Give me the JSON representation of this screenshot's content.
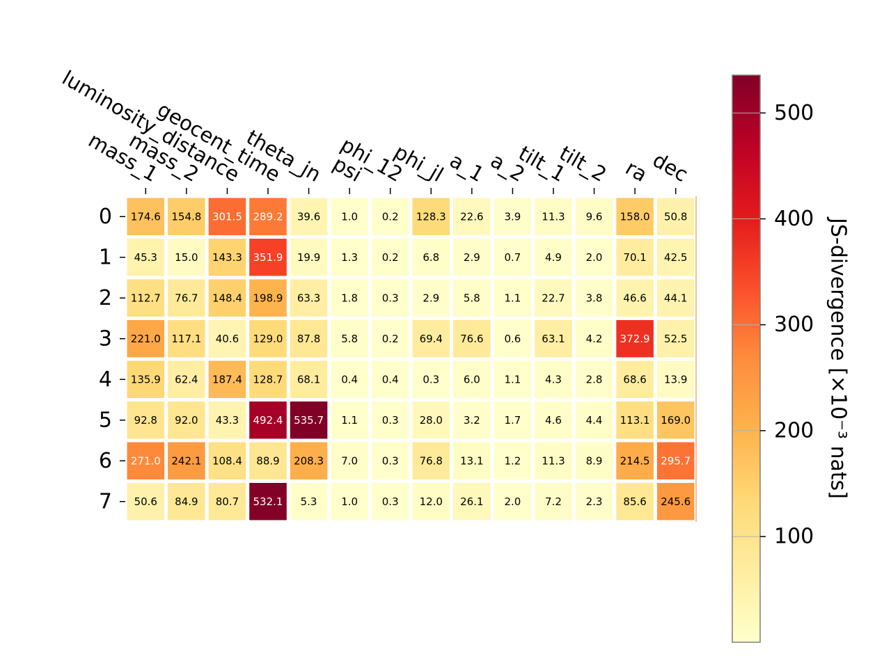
{
  "chart_data": {
    "type": "heatmap",
    "title": "",
    "xlabel": "",
    "ylabel": "",
    "columns": [
      "mass_1",
      "mass_2",
      "luminosity_distance",
      "geocent_time",
      "theta_jn",
      "psi",
      "phi_12",
      "phi_jl",
      "a_1",
      "a_2",
      "tilt_1",
      "tilt_2",
      "ra",
      "dec"
    ],
    "rows": [
      "0",
      "1",
      "2",
      "3",
      "4",
      "5",
      "6",
      "7"
    ],
    "values": [
      [
        174.6,
        154.8,
        301.5,
        289.2,
        39.6,
        1.0,
        0.2,
        128.3,
        22.6,
        3.9,
        11.3,
        9.6,
        158.0,
        50.8
      ],
      [
        45.3,
        15.0,
        143.3,
        351.9,
        19.9,
        1.3,
        0.2,
        6.8,
        2.9,
        0.7,
        4.9,
        2.0,
        70.1,
        42.5
      ],
      [
        112.7,
        76.7,
        148.4,
        198.9,
        63.3,
        1.8,
        0.3,
        2.9,
        5.8,
        1.1,
        22.7,
        3.8,
        46.6,
        44.1
      ],
      [
        221.0,
        117.1,
        40.6,
        129.0,
        87.8,
        5.8,
        0.2,
        69.4,
        76.6,
        0.6,
        63.1,
        4.2,
        372.9,
        52.5
      ],
      [
        135.9,
        62.4,
        187.4,
        128.7,
        68.1,
        0.4,
        0.4,
        0.3,
        6.0,
        1.1,
        4.3,
        2.8,
        68.6,
        13.9
      ],
      [
        92.8,
        92.0,
        43.3,
        492.4,
        535.7,
        1.1,
        0.3,
        28.0,
        3.2,
        1.7,
        4.6,
        4.4,
        113.1,
        169.0
      ],
      [
        271.0,
        242.1,
        108.4,
        88.9,
        208.3,
        7.0,
        0.3,
        76.8,
        13.1,
        1.2,
        11.3,
        8.9,
        214.5,
        295.7
      ],
      [
        50.6,
        84.9,
        80.7,
        532.1,
        5.3,
        1.0,
        0.3,
        12.0,
        26.1,
        2.0,
        7.2,
        2.3,
        85.6,
        245.6
      ]
    ],
    "colorbar": {
      "label": "JS-divergence [×10⁻³ nats]",
      "ticks": [
        100,
        200,
        300,
        400,
        500
      ],
      "range": [
        0.2,
        535.7
      ],
      "colormap": "YlOrRd"
    },
    "grid": false
  }
}
